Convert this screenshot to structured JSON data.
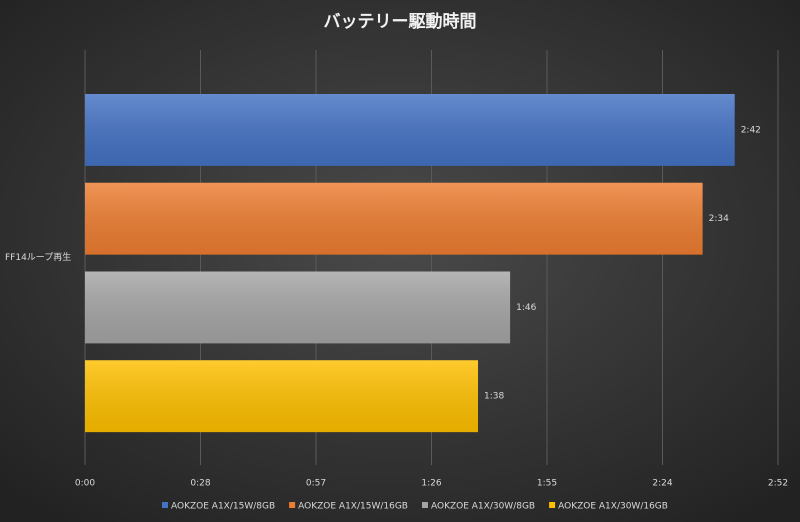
{
  "chart_data": {
    "type": "hbar",
    "title": "バッテリー駆動時間",
    "categories": [
      "FF14ループ再生"
    ],
    "series": [
      {
        "name": "AOKZOE A1X/15W/8GB",
        "color": "#4472c4",
        "values": [
          162
        ],
        "value_labels": [
          "2:42"
        ]
      },
      {
        "name": "AOKZOE A1X/15W/16GB",
        "color": "#ed7d31",
        "values": [
          154
        ],
        "value_labels": [
          "2:34"
        ]
      },
      {
        "name": "AOKZOE A1X/30W/8GB",
        "color": "#a5a5a5",
        "values": [
          106
        ],
        "value_labels": [
          "1:46"
        ]
      },
      {
        "name": "AOKZOE A1X/30W/16GB",
        "color": "#ffc000",
        "values": [
          98
        ],
        "value_labels": [
          "1:38"
        ]
      }
    ],
    "xlim": [
      0,
      172.8
    ],
    "xticks": [
      {
        "value": 0,
        "label": "0:00"
      },
      {
        "value": 28.8,
        "label": "0:28"
      },
      {
        "value": 57.6,
        "label": "0:57"
      },
      {
        "value": 86.4,
        "label": "1:26"
      },
      {
        "value": 115.2,
        "label": "1:55"
      },
      {
        "value": 144,
        "label": "2:24"
      },
      {
        "value": 172.8,
        "label": "2:52"
      }
    ],
    "grid": true,
    "legend": "bottom"
  }
}
